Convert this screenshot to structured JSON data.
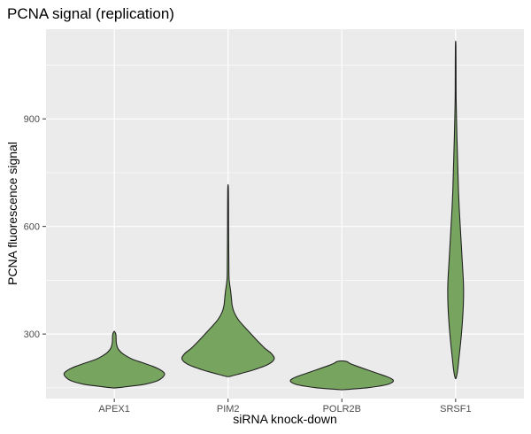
{
  "chart_data": {
    "type": "violin",
    "title": "PCNA signal (replication)",
    "xlabel": "siRNA knock-down",
    "ylabel": "PCNA fluorescence signal",
    "categories": [
      "APEX1",
      "PIM2",
      "POLR2B",
      "SRSF1"
    ],
    "yticks": [
      300,
      600,
      900
    ],
    "ylim": [
      120,
      1150
    ],
    "grid": true,
    "legend": "none",
    "colors": {
      "panel": "#ebebeb",
      "grid": "#ffffff",
      "fill": "#77a55f",
      "stroke": "#222222"
    },
    "series": [
      {
        "category": "APEX1",
        "min": 150,
        "max": 307,
        "median": 197,
        "profile": [
          [
            150,
            0.05
          ],
          [
            155,
            0.35
          ],
          [
            160,
            0.6
          ],
          [
            170,
            0.85
          ],
          [
            180,
            0.95
          ],
          [
            190,
            0.98
          ],
          [
            200,
            0.9
          ],
          [
            210,
            0.75
          ],
          [
            220,
            0.55
          ],
          [
            230,
            0.35
          ],
          [
            240,
            0.22
          ],
          [
            248,
            0.14
          ],
          [
            260,
            0.07
          ],
          [
            275,
            0.04
          ],
          [
            290,
            0.035
          ],
          [
            300,
            0.03
          ],
          [
            307,
            0.005
          ]
        ]
      },
      {
        "category": "PIM2",
        "min": 182,
        "max": 715,
        "median": 262,
        "profile": [
          [
            182,
            0.04
          ],
          [
            190,
            0.25
          ],
          [
            200,
            0.5
          ],
          [
            215,
            0.78
          ],
          [
            230,
            0.9
          ],
          [
            245,
            0.85
          ],
          [
            260,
            0.72
          ],
          [
            280,
            0.58
          ],
          [
            300,
            0.45
          ],
          [
            320,
            0.32
          ],
          [
            340,
            0.2
          ],
          [
            360,
            0.12
          ],
          [
            380,
            0.08
          ],
          [
            400,
            0.065
          ],
          [
            420,
            0.05
          ],
          [
            440,
            0.03
          ],
          [
            460,
            0.018
          ],
          [
            500,
            0.015
          ],
          [
            550,
            0.012
          ],
          [
            600,
            0.01
          ],
          [
            650,
            0.009
          ],
          [
            700,
            0.007
          ],
          [
            715,
            0.002
          ]
        ]
      },
      {
        "category": "POLR2B",
        "min": 145,
        "max": 225,
        "median": 170,
        "profile": [
          [
            145,
            0.05
          ],
          [
            150,
            0.5
          ],
          [
            158,
            0.85
          ],
          [
            165,
            0.98
          ],
          [
            172,
            1.0
          ],
          [
            180,
            0.9
          ],
          [
            190,
            0.7
          ],
          [
            200,
            0.5
          ],
          [
            210,
            0.3
          ],
          [
            218,
            0.16
          ],
          [
            223,
            0.1
          ],
          [
            225,
            0.02
          ]
        ]
      },
      {
        "category": "SRSF1",
        "min": 178,
        "max": 1115,
        "median": 440,
        "profile": [
          [
            178,
            0.01
          ],
          [
            200,
            0.04
          ],
          [
            240,
            0.07
          ],
          [
            280,
            0.1
          ],
          [
            330,
            0.13
          ],
          [
            380,
            0.15
          ],
          [
            420,
            0.155
          ],
          [
            450,
            0.15
          ],
          [
            500,
            0.13
          ],
          [
            550,
            0.11
          ],
          [
            600,
            0.09
          ],
          [
            650,
            0.07
          ],
          [
            700,
            0.055
          ],
          [
            750,
            0.045
          ],
          [
            800,
            0.035
          ],
          [
            850,
            0.025
          ],
          [
            900,
            0.017
          ],
          [
            950,
            0.01
          ],
          [
            1000,
            0.008
          ],
          [
            1050,
            0.007
          ],
          [
            1100,
            0.005
          ],
          [
            1115,
            0.002
          ]
        ]
      }
    ]
  }
}
